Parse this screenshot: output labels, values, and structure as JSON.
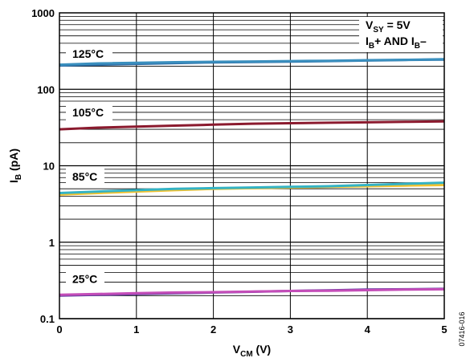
{
  "chart_data": {
    "type": "line",
    "xlabel": {
      "main": "V",
      "sub": "CM",
      "unit": " (V)"
    },
    "ylabel": {
      "main": "I",
      "sub": "B",
      "unit": " (pA)"
    },
    "xlim": [
      0,
      5
    ],
    "ylim": [
      0.1,
      1000
    ],
    "yscale": "log",
    "x_ticks": [
      "0",
      "1",
      "2",
      "3",
      "4",
      "5"
    ],
    "y_ticks": [
      {
        "value": 0.1,
        "label": "0.1"
      },
      {
        "value": 1,
        "label": "1"
      },
      {
        "value": 10,
        "label": "10"
      },
      {
        "value": 100,
        "label": "100"
      },
      {
        "value": 1000,
        "label": "1000"
      }
    ],
    "grid": true,
    "conditions": {
      "vsy": {
        "main": "V",
        "sub": "SY",
        "rest": " = 5V"
      },
      "ib": {
        "a": "I",
        "a_sub": "B",
        "b": "+ AND I",
        "b_sub": "B",
        "c": "–"
      }
    },
    "temperature_labels": [
      {
        "text": "125°C",
        "y": 290
      },
      {
        "text": "105°C",
        "y": 50
      },
      {
        "text": "85°C",
        "y": 7.2
      },
      {
        "text": "25°C",
        "y": 0.33
      }
    ],
    "series": [
      {
        "color": "#2F6FA8",
        "x": [
          0,
          0.5,
          1,
          1.5,
          2,
          2.5,
          3,
          3.5,
          4,
          4.5,
          5
        ],
        "y": [
          205,
          210,
          215,
          220,
          225,
          228,
          230,
          234,
          238,
          242,
          245
        ]
      },
      {
        "color": "#3A8FBE",
        "x": [
          0,
          0.5,
          1,
          1.5,
          2,
          2.5,
          3,
          3.5,
          4,
          4.5,
          5
        ],
        "y": [
          210,
          218,
          222,
          226,
          229,
          231,
          234,
          236,
          240,
          243,
          247
        ]
      },
      {
        "color": "#8B1A2E",
        "x": [
          0,
          0.5,
          1,
          1.5,
          2,
          2.5,
          3,
          3.5,
          4,
          4.5,
          5
        ],
        "y": [
          30,
          31.5,
          32.5,
          33.5,
          34.5,
          35.5,
          36,
          36.5,
          37,
          37.5,
          38
        ]
      },
      {
        "color": "#F2C230",
        "x": [
          0,
          0.5,
          1,
          1.5,
          2,
          2.5,
          3,
          3.5,
          4,
          4.5,
          5
        ],
        "y": [
          4.2,
          4.4,
          4.6,
          4.8,
          5.0,
          5.1,
          5.2,
          5.3,
          5.4,
          5.5,
          5.6
        ]
      },
      {
        "color": "#34B3C4",
        "x": [
          0,
          0.5,
          1,
          1.5,
          2,
          2.5,
          3,
          3.5,
          4,
          4.5,
          5
        ],
        "y": [
          4.4,
          4.6,
          4.8,
          5.0,
          5.1,
          5.2,
          5.3,
          5.4,
          5.6,
          5.8,
          6.0
        ]
      },
      {
        "color": "#5E3A9E",
        "x": [
          0,
          0.5,
          1,
          1.5,
          2,
          2.5,
          3,
          3.5,
          4,
          4.5,
          5
        ],
        "y": [
          0.2,
          0.205,
          0.21,
          0.215,
          0.22,
          0.225,
          0.23,
          0.235,
          0.24,
          0.242,
          0.245
        ]
      },
      {
        "color": "#C44DB8",
        "x": [
          0,
          0.5,
          1,
          1.5,
          2,
          2.5,
          3,
          3.5,
          4,
          4.5,
          5
        ],
        "y": [
          0.205,
          0.21,
          0.215,
          0.22,
          0.222,
          0.226,
          0.23,
          0.232,
          0.236,
          0.24,
          0.242
        ]
      }
    ],
    "figure_id": "07416-016"
  }
}
